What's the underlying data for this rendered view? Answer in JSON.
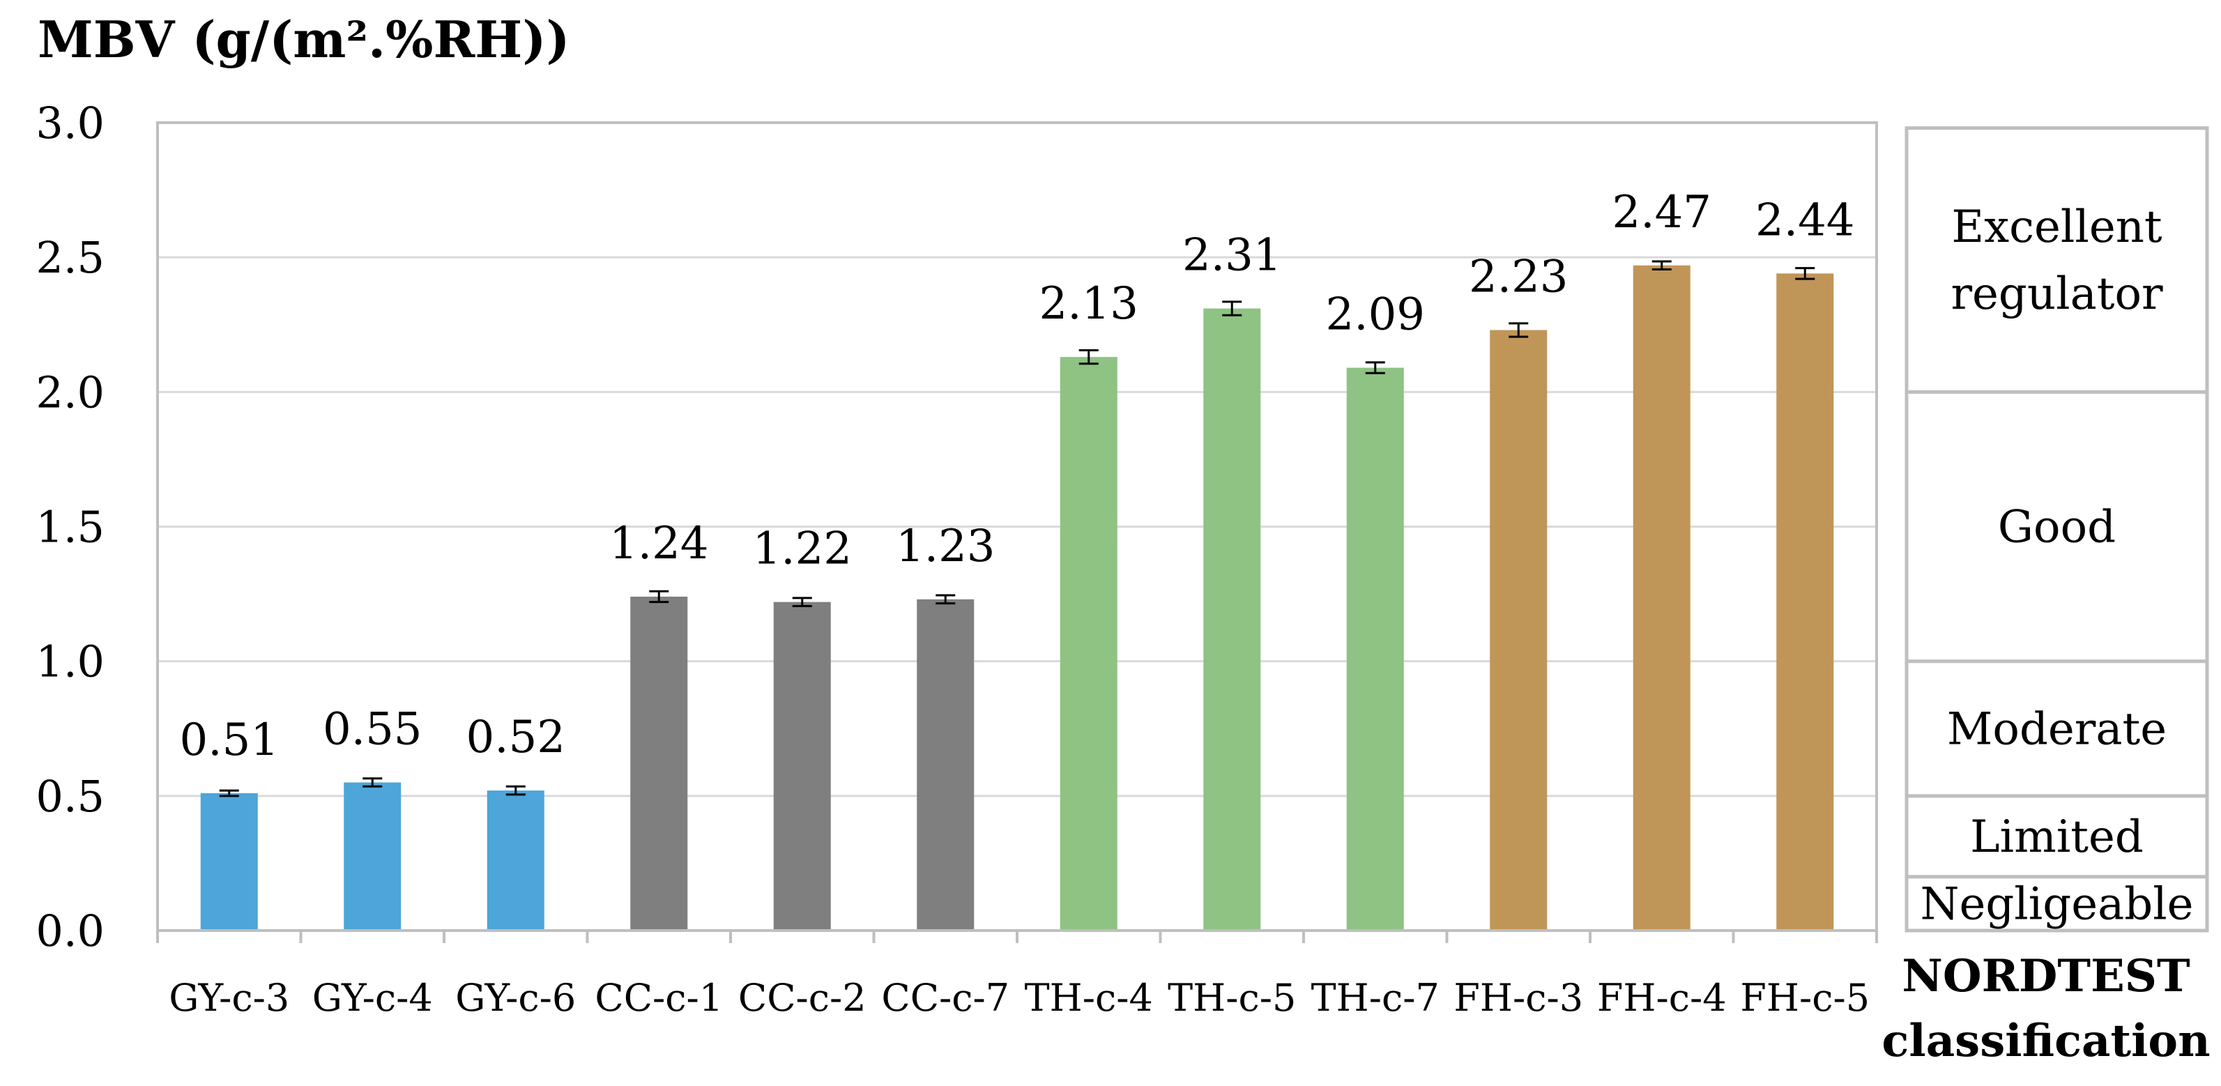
{
  "chart_data": {
    "type": "bar",
    "title": "",
    "ylabel": "MBV (g/(m².%RH))",
    "xlabel": "",
    "ylim": [
      0,
      3.0
    ],
    "yticks": [
      "0.0",
      "0.5",
      "1.0",
      "1.5",
      "2.0",
      "2.5",
      "3.0"
    ],
    "grid": true,
    "categories": [
      "GY-c-3",
      "GY-c-4",
      "GY-c-6",
      "CC-c-1",
      "CC-c-2",
      "CC-c-7",
      "TH-c-4",
      "TH-c-5",
      "TH-c-7",
      "FH-c-3",
      "FH-c-4",
      "FH-c-5"
    ],
    "values": [
      0.51,
      0.55,
      0.52,
      1.24,
      1.22,
      1.23,
      2.13,
      2.31,
      2.09,
      2.23,
      2.47,
      2.44
    ],
    "value_labels": [
      "0.51",
      "0.55",
      "0.52",
      "1.24",
      "1.22",
      "1.23",
      "2.13",
      "2.31",
      "2.09",
      "2.23",
      "2.47",
      "2.44"
    ],
    "errors": [
      0.01,
      0.015,
      0.015,
      0.02,
      0.015,
      0.015,
      0.025,
      0.025,
      0.02,
      0.025,
      0.015,
      0.02
    ],
    "colors": [
      "#4EA5D9",
      "#4EA5D9",
      "#4EA5D9",
      "#7F7F7F",
      "#7F7F7F",
      "#7F7F7F",
      "#8EC383",
      "#8EC383",
      "#8EC383",
      "#C09558",
      "#C09558",
      "#C09558"
    ],
    "classification": {
      "title_line1": "NORDTEST",
      "title_line2": "classification",
      "bands": [
        {
          "from": 0.0,
          "to": 0.2,
          "lines": [
            "Negligeable"
          ]
        },
        {
          "from": 0.2,
          "to": 0.5,
          "lines": [
            "Limited"
          ]
        },
        {
          "from": 0.5,
          "to": 1.0,
          "lines": [
            "Moderate"
          ]
        },
        {
          "from": 1.0,
          "to": 2.0,
          "lines": [
            "Good"
          ]
        },
        {
          "from": 2.0,
          "to": 2.98,
          "lines": [
            "Excellent",
            "regulator"
          ]
        }
      ]
    }
  }
}
